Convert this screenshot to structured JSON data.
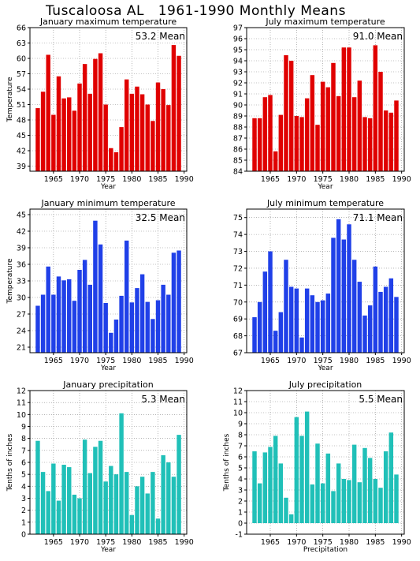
{
  "page_title": "Tuscaloosa AL   1961-1990 Monthly Means",
  "chart_data": [
    {
      "type": "bar",
      "title": "January maximum temperature",
      "mean_label": "53.2  Mean",
      "xlabel": "Year",
      "ylabel": "Temperature",
      "color": "#e00000",
      "ylim": [
        38,
        66
      ],
      "yticks": [
        "39",
        "42",
        "45",
        "48",
        "51",
        "54",
        "57",
        "60",
        "63",
        "66"
      ],
      "xticks": [
        "1965",
        "1970",
        "1975",
        "1980",
        "1985",
        "1990"
      ],
      "x": [
        1961,
        1962,
        1963,
        1964,
        1965,
        1966,
        1967,
        1968,
        1969,
        1970,
        1971,
        1972,
        1973,
        1974,
        1975,
        1976,
        1977,
        1978,
        1979,
        1980,
        1981,
        1982,
        1983,
        1984,
        1985,
        1986,
        1987,
        1988,
        1989,
        1990
      ],
      "values": [
        38.0,
        50.3,
        53.5,
        60.7,
        49.0,
        56.5,
        52.2,
        52.4,
        49.8,
        55.1,
        58.9,
        53.1,
        59.9,
        61.0,
        51.0,
        42.5,
        41.7,
        46.6,
        55.9,
        53.1,
        54.5,
        53.0,
        51.0,
        47.8,
        55.3,
        54.0,
        50.9,
        62.6,
        60.5,
        38.0
      ]
    },
    {
      "type": "bar",
      "title": "July maximum temperature",
      "mean_label": "91.0  Mean",
      "xlabel": "Year",
      "ylabel": "",
      "color": "#e00000",
      "ylim": [
        84,
        97
      ],
      "yticks": [
        "84",
        "85",
        "86",
        "87",
        "88",
        "89",
        "90",
        "91",
        "92",
        "93",
        "94",
        "95",
        "96",
        "97"
      ],
      "xticks": [
        "1965",
        "1970",
        "1975",
        "1980",
        "1985",
        "1990"
      ],
      "x": [
        1961,
        1962,
        1963,
        1964,
        1965,
        1966,
        1967,
        1968,
        1969,
        1970,
        1971,
        1972,
        1973,
        1974,
        1975,
        1976,
        1977,
        1978,
        1979,
        1980,
        1981,
        1982,
        1983,
        1984,
        1985,
        1986,
        1987,
        1988,
        1989,
        1990
      ],
      "values": [
        84.0,
        88.8,
        88.8,
        90.7,
        90.9,
        85.8,
        89.1,
        94.5,
        94.0,
        89.0,
        88.9,
        90.6,
        92.7,
        88.2,
        92.1,
        91.6,
        93.8,
        90.8,
        95.2,
        95.2,
        90.7,
        92.2,
        88.9,
        88.8,
        95.4,
        93.0,
        89.5,
        89.3,
        90.4,
        84.0
      ]
    },
    {
      "type": "bar",
      "title": "January minimum temperature",
      "mean_label": "32.5  Mean",
      "xlabel": "Year",
      "ylabel": "Temperature",
      "color": "#2040e8",
      "ylim": [
        20,
        46
      ],
      "yticks": [
        "21",
        "24",
        "27",
        "30",
        "33",
        "36",
        "39",
        "42",
        "45"
      ],
      "xticks": [
        "1965",
        "1970",
        "1975",
        "1980",
        "1985",
        "1990"
      ],
      "x": [
        1961,
        1962,
        1963,
        1964,
        1965,
        1966,
        1967,
        1968,
        1969,
        1970,
        1971,
        1972,
        1973,
        1974,
        1975,
        1976,
        1977,
        1978,
        1979,
        1980,
        1981,
        1982,
        1983,
        1984,
        1985,
        1986,
        1987,
        1988,
        1989,
        1990
      ],
      "values": [
        20.0,
        28.5,
        30.5,
        35.6,
        30.5,
        33.8,
        33.1,
        33.3,
        29.4,
        35.0,
        36.8,
        32.3,
        43.9,
        39.6,
        29.0,
        23.6,
        26.0,
        30.3,
        40.3,
        29.1,
        31.7,
        34.2,
        29.2,
        26.1,
        29.5,
        32.3,
        30.5,
        38.1,
        38.5,
        20.0
      ]
    },
    {
      "type": "bar",
      "title": "July minimum temperature",
      "mean_label": "71.1  Mean",
      "xlabel": "Year",
      "ylabel": "",
      "color": "#2040e8",
      "ylim": [
        67,
        75.5
      ],
      "yticks": [
        "67",
        "68",
        "69",
        "70",
        "71",
        "72",
        "73",
        "74",
        "75"
      ],
      "xticks": [
        "1965",
        "1970",
        "1975",
        "1980",
        "1985",
        "1990"
      ],
      "x": [
        1961,
        1962,
        1963,
        1964,
        1965,
        1966,
        1967,
        1968,
        1969,
        1970,
        1971,
        1972,
        1973,
        1974,
        1975,
        1976,
        1977,
        1978,
        1979,
        1980,
        1981,
        1982,
        1983,
        1984,
        1985,
        1986,
        1987,
        1988,
        1989,
        1990
      ],
      "values": [
        67.0,
        69.1,
        70.0,
        71.8,
        73.0,
        68.3,
        69.4,
        72.5,
        70.9,
        70.8,
        67.9,
        70.8,
        70.4,
        70.0,
        70.1,
        70.5,
        73.8,
        74.9,
        73.7,
        74.6,
        72.5,
        71.2,
        69.2,
        69.8,
        72.1,
        70.6,
        70.9,
        71.4,
        70.3,
        67.0
      ]
    },
    {
      "type": "bar",
      "title": "January precipitation",
      "mean_label": "5.3  Mean",
      "xlabel": "Year",
      "ylabel": "Tenths of inches",
      "color": "#20c0b8",
      "ylim": [
        0,
        12
      ],
      "yticks": [
        "0",
        "1",
        "2",
        "3",
        "4",
        "5",
        "6",
        "7",
        "8",
        "9",
        "10",
        "11",
        "12"
      ],
      "xticks": [
        "1965",
        "1970",
        "1975",
        "1980",
        "1985",
        "1990"
      ],
      "x": [
        1961,
        1962,
        1963,
        1964,
        1965,
        1966,
        1967,
        1968,
        1969,
        1970,
        1971,
        1972,
        1973,
        1974,
        1975,
        1976,
        1977,
        1978,
        1979,
        1980,
        1981,
        1982,
        1983,
        1984,
        1985,
        1986,
        1987,
        1988,
        1989,
        1990
      ],
      "values": [
        0,
        7.8,
        5.2,
        3.6,
        5.9,
        2.8,
        5.8,
        5.6,
        3.3,
        3.0,
        7.9,
        5.1,
        7.3,
        7.8,
        4.4,
        5.7,
        5.0,
        10.1,
        5.2,
        1.6,
        4.0,
        4.8,
        3.4,
        5.2,
        1.3,
        6.6,
        6.0,
        4.8,
        8.3,
        0
      ]
    },
    {
      "type": "bar",
      "title": "July precipitation",
      "mean_label": "5.5  Mean",
      "xlabel": "Precipitation",
      "ylabel": "Tenths of inches",
      "color": "#20c0b8",
      "ylim": [
        -1,
        12
      ],
      "yticks": [
        "-1",
        "0",
        "1",
        "2",
        "3",
        "4",
        "5",
        "6",
        "7",
        "8",
        "9",
        "10",
        "11",
        "12"
      ],
      "xticks": [
        "1965",
        "1970",
        "1975",
        "1980",
        "1985",
        "1990"
      ],
      "x": [
        1961,
        1962,
        1963,
        1964,
        1965,
        1966,
        1967,
        1968,
        1969,
        1970,
        1971,
        1972,
        1973,
        1974,
        1975,
        1976,
        1977,
        1978,
        1979,
        1980,
        1981,
        1982,
        1983,
        1984,
        1985,
        1986,
        1987,
        1988,
        1989,
        1990
      ],
      "values": [
        0,
        6.5,
        3.6,
        6.4,
        6.9,
        7.9,
        5.4,
        2.3,
        0.8,
        9.6,
        7.9,
        10.1,
        3.5,
        7.2,
        3.6,
        6.3,
        2.9,
        5.4,
        4.0,
        3.9,
        7.1,
        3.7,
        6.8,
        5.9,
        4.0,
        3.2,
        6.5,
        8.2,
        4.4,
        0
      ]
    }
  ]
}
